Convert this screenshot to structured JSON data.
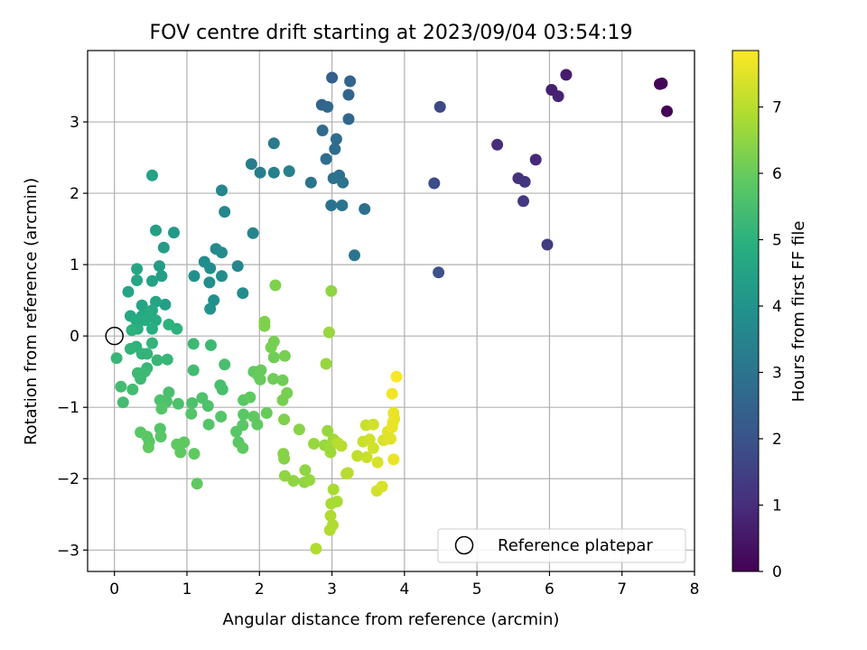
{
  "chart_data": {
    "type": "scatter",
    "title": "FOV centre drift starting at 2023/09/04 03:54:19",
    "xlabel": "Angular distance from reference (arcmin)",
    "ylabel": "Rotation from reference (arcmin)",
    "xlim": [
      -0.37,
      8.0
    ],
    "ylim": [
      -3.3,
      4.0
    ],
    "xticks": [
      0,
      1,
      2,
      3,
      4,
      5,
      6,
      7,
      8
    ],
    "yticks": [
      -3,
      -2,
      -1,
      0,
      1,
      2,
      3
    ],
    "grid": true,
    "colormap": "viridis",
    "colorbar": {
      "label": "Hours from first FF file",
      "range": [
        0,
        7.85
      ],
      "ticks": [
        0,
        1,
        2,
        3,
        4,
        5,
        6,
        7
      ]
    },
    "legend": {
      "placement": "lower-right",
      "entries": [
        "Reference platepar"
      ]
    },
    "reference_point": {
      "x": 0,
      "y": 0,
      "label": "Reference platepar"
    },
    "points": [
      [
        7.62,
        3.15,
        0.05
      ],
      [
        7.55,
        3.54,
        0.08
      ],
      [
        7.52,
        3.53,
        0.1
      ],
      [
        6.23,
        3.66,
        0.6
      ],
      [
        6.03,
        3.45,
        0.7
      ],
      [
        6.12,
        3.36,
        0.75
      ],
      [
        5.28,
        2.68,
        1.0
      ],
      [
        5.81,
        2.47,
        0.9
      ],
      [
        5.57,
        2.21,
        1.1
      ],
      [
        5.66,
        2.16,
        1.2
      ],
      [
        5.64,
        1.89,
        1.3
      ],
      [
        5.97,
        1.28,
        1.35
      ],
      [
        4.49,
        3.21,
        1.7
      ],
      [
        4.41,
        2.14,
        1.8
      ],
      [
        4.47,
        0.89,
        1.9
      ],
      [
        3.0,
        3.62,
        2.4
      ],
      [
        3.25,
        3.57,
        2.5
      ],
      [
        2.86,
        3.24,
        2.5
      ],
      [
        2.94,
        3.21,
        2.6
      ],
      [
        3.23,
        3.38,
        2.5
      ],
      [
        3.23,
        3.04,
        2.6
      ],
      [
        2.87,
        2.88,
        2.7
      ],
      [
        3.06,
        2.76,
        2.75
      ],
      [
        3.04,
        2.62,
        2.8
      ],
      [
        2.92,
        2.48,
        2.8
      ],
      [
        3.1,
        2.25,
        2.9
      ],
      [
        3.02,
        2.21,
        2.9
      ],
      [
        3.15,
        2.15,
        3.0
      ],
      [
        2.71,
        2.15,
        3.0
      ],
      [
        2.99,
        1.83,
        2.9
      ],
      [
        3.14,
        1.83,
        3.0
      ],
      [
        3.45,
        1.78,
        2.9
      ],
      [
        3.31,
        1.13,
        3.0
      ],
      [
        2.2,
        2.7,
        3.2
      ],
      [
        1.89,
        2.41,
        3.3
      ],
      [
        2.01,
        2.29,
        3.3
      ],
      [
        2.2,
        2.29,
        3.4
      ],
      [
        2.41,
        2.31,
        3.4
      ],
      [
        1.48,
        2.04,
        3.6
      ],
      [
        1.52,
        1.74,
        3.6
      ],
      [
        1.91,
        1.44,
        3.5
      ],
      [
        1.4,
        1.22,
        3.7
      ],
      [
        1.48,
        1.17,
        3.7
      ],
      [
        1.24,
        1.04,
        3.8
      ],
      [
        1.7,
        0.98,
        3.6
      ],
      [
        1.32,
        0.95,
        3.8
      ],
      [
        1.48,
        0.84,
        3.8
      ],
      [
        1.1,
        0.84,
        3.9
      ],
      [
        1.31,
        0.75,
        3.9
      ],
      [
        1.77,
        0.6,
        3.8
      ],
      [
        1.37,
        0.5,
        3.9
      ],
      [
        1.32,
        0.38,
        4.0
      ],
      [
        0.52,
        2.25,
        4.5
      ],
      [
        0.57,
        1.48,
        4.4
      ],
      [
        0.82,
        1.45,
        4.2
      ],
      [
        0.68,
        1.24,
        4.3
      ],
      [
        0.62,
        0.98,
        4.3
      ],
      [
        0.31,
        0.94,
        4.6
      ],
      [
        0.65,
        0.84,
        4.4
      ],
      [
        0.31,
        0.78,
        4.6
      ],
      [
        0.52,
        0.77,
        4.5
      ],
      [
        0.7,
        0.44,
        4.4
      ],
      [
        0.19,
        0.62,
        4.6
      ],
      [
        0.57,
        0.48,
        4.6
      ],
      [
        0.38,
        0.43,
        4.6
      ],
      [
        0.52,
        0.36,
        4.7
      ],
      [
        0.47,
        0.32,
        4.8
      ],
      [
        0.22,
        0.28,
        4.7
      ],
      [
        0.38,
        0.28,
        4.7
      ],
      [
        0.42,
        0.22,
        4.8
      ],
      [
        0.57,
        0.22,
        4.8
      ],
      [
        0.3,
        0.22,
        4.8
      ],
      [
        0.52,
        0.1,
        4.9
      ],
      [
        0.32,
        0.1,
        4.9
      ],
      [
        0.24,
        0.08,
        5.0
      ],
      [
        0.75,
        0.16,
        5.0
      ],
      [
        0.86,
        0.1,
        5.0
      ],
      [
        0.3,
        -0.15,
        5.0
      ],
      [
        0.22,
        -0.18,
        5.1
      ],
      [
        0.52,
        -0.1,
        5.1
      ],
      [
        0.45,
        -0.25,
        5.1
      ],
      [
        0.38,
        -0.25,
        5.1
      ],
      [
        0.03,
        -0.31,
        5.2
      ],
      [
        0.59,
        -0.34,
        5.2
      ],
      [
        0.73,
        -0.33,
        5.2
      ],
      [
        0.45,
        -0.45,
        5.2
      ],
      [
        0.42,
        -0.5,
        5.3
      ],
      [
        0.32,
        -0.52,
        5.3
      ],
      [
        0.36,
        -0.6,
        5.3
      ],
      [
        0.09,
        -0.71,
        5.4
      ],
      [
        0.25,
        -0.75,
        5.4
      ],
      [
        0.12,
        -0.93,
        5.4
      ],
      [
        1.09,
        -0.11,
        5.3
      ],
      [
        1.33,
        -0.13,
        5.3
      ],
      [
        1.09,
        -0.48,
        5.4
      ],
      [
        1.52,
        -0.4,
        5.5
      ],
      [
        1.46,
        -0.69,
        5.5
      ],
      [
        1.49,
        -0.75,
        5.5
      ],
      [
        0.75,
        -0.79,
        5.5
      ],
      [
        0.63,
        -0.9,
        5.6
      ],
      [
        0.72,
        -0.92,
        5.6
      ],
      [
        0.88,
        -0.95,
        5.6
      ],
      [
        1.07,
        -0.94,
        5.6
      ],
      [
        1.21,
        -0.87,
        5.6
      ],
      [
        1.29,
        -0.98,
        5.6
      ],
      [
        0.65,
        -1.02,
        5.7
      ],
      [
        1.06,
        -1.09,
        5.7
      ],
      [
        1.47,
        -1.13,
        5.7
      ],
      [
        1.3,
        -1.24,
        5.7
      ],
      [
        0.63,
        -1.3,
        5.7
      ],
      [
        0.36,
        -1.35,
        5.8
      ],
      [
        0.45,
        -1.41,
        5.8
      ],
      [
        0.48,
        -1.48,
        5.8
      ],
      [
        0.64,
        -1.41,
        5.8
      ],
      [
        0.47,
        -1.56,
        5.9
      ],
      [
        0.86,
        -1.52,
        5.9
      ],
      [
        0.96,
        -1.49,
        5.9
      ],
      [
        0.91,
        -1.63,
        5.9
      ],
      [
        1.1,
        -1.65,
        5.9
      ],
      [
        1.14,
        -2.07,
        5.9
      ],
      [
        1.68,
        -1.34,
        5.8
      ],
      [
        1.71,
        -1.49,
        5.8
      ],
      [
        1.77,
        -1.57,
        5.9
      ],
      [
        1.77,
        -1.25,
        5.8
      ],
      [
        1.78,
        -1.1,
        5.8
      ],
      [
        1.92,
        -1.13,
        5.9
      ],
      [
        1.78,
        -0.9,
        5.8
      ],
      [
        1.87,
        -0.86,
        5.9
      ],
      [
        1.92,
        -0.5,
        5.9
      ],
      [
        1.98,
        -0.55,
        6.0
      ],
      [
        2.01,
        -0.61,
        6.0
      ],
      [
        2.02,
        -0.48,
        6.0
      ],
      [
        1.97,
        -1.24,
        5.9
      ],
      [
        2.1,
        -1.08,
        6.0
      ],
      [
        2.19,
        -0.6,
        6.1
      ],
      [
        2.2,
        -0.3,
        6.1
      ],
      [
        2.32,
        -0.62,
        6.1
      ],
      [
        2.2,
        -0.08,
        6.2
      ],
      [
        2.16,
        -0.16,
        6.2
      ],
      [
        2.35,
        -0.28,
        6.2
      ],
      [
        2.07,
        0.14,
        6.3
      ],
      [
        2.07,
        0.2,
        6.3
      ],
      [
        2.22,
        0.71,
        6.3
      ],
      [
        2.38,
        -0.8,
        6.2
      ],
      [
        2.32,
        -0.9,
        6.2
      ],
      [
        2.34,
        -1.17,
        6.3
      ],
      [
        2.55,
        -1.31,
        6.4
      ],
      [
        2.33,
        -1.65,
        6.4
      ],
      [
        2.34,
        -1.72,
        6.4
      ],
      [
        2.35,
        -1.96,
        6.5
      ],
      [
        2.47,
        -2.03,
        6.5
      ],
      [
        2.62,
        -2.05,
        6.5
      ],
      [
        2.63,
        -1.88,
        6.5
      ],
      [
        2.69,
        -2.02,
        6.6
      ],
      [
        2.75,
        -1.51,
        6.6
      ],
      [
        2.94,
        -1.33,
        6.6
      ],
      [
        2.9,
        -1.53,
        6.6
      ],
      [
        2.98,
        -1.54,
        6.7
      ],
      [
        2.98,
        -1.63,
        6.7
      ],
      [
        3.02,
        -1.45,
        6.7
      ],
      [
        2.99,
        0.63,
        6.5
      ],
      [
        2.96,
        0.05,
        6.6
      ],
      [
        2.92,
        -0.39,
        6.6
      ],
      [
        3.02,
        -2.15,
        6.8
      ],
      [
        2.99,
        -2.35,
        6.8
      ],
      [
        3.07,
        -2.32,
        6.8
      ],
      [
        2.98,
        -2.52,
        6.9
      ],
      [
        3.01,
        -2.65,
        6.9
      ],
      [
        2.97,
        -2.72,
        6.9
      ],
      [
        2.78,
        -2.98,
        6.9
      ],
      [
        3.2,
        -1.93,
        7.0
      ],
      [
        3.22,
        -1.92,
        7.0
      ],
      [
        3.13,
        -1.54,
        7.0
      ],
      [
        3.08,
        -1.5,
        7.0
      ],
      [
        3.35,
        -1.68,
        7.1
      ],
      [
        3.48,
        -1.7,
        7.2
      ],
      [
        3.43,
        -1.48,
        7.2
      ],
      [
        3.47,
        -1.25,
        7.2
      ],
      [
        3.57,
        -1.24,
        7.3
      ],
      [
        3.52,
        -1.45,
        7.3
      ],
      [
        3.57,
        -1.57,
        7.3
      ],
      [
        3.63,
        -1.77,
        7.4
      ],
      [
        3.62,
        -2.17,
        7.3
      ],
      [
        3.69,
        -2.11,
        7.4
      ],
      [
        3.71,
        -1.46,
        7.4
      ],
      [
        3.79,
        -1.44,
        7.5
      ],
      [
        3.81,
        -1.44,
        7.5
      ],
      [
        3.77,
        -1.34,
        7.5
      ],
      [
        3.83,
        -1.28,
        7.6
      ],
      [
        3.84,
        -1.21,
        7.6
      ],
      [
        3.86,
        -1.16,
        7.6
      ],
      [
        3.85,
        -1.08,
        7.6
      ],
      [
        3.85,
        -1.73,
        7.6
      ],
      [
        3.83,
        -0.81,
        7.7
      ],
      [
        3.89,
        -0.57,
        7.8
      ]
    ]
  }
}
